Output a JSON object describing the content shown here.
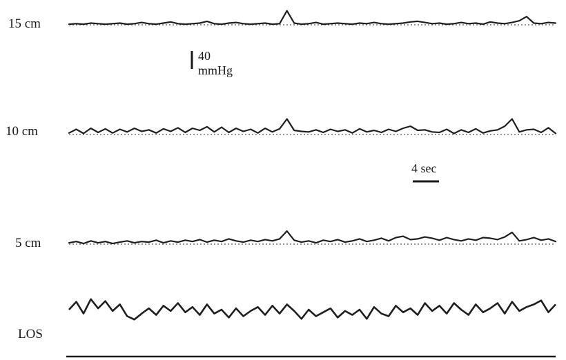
{
  "chart_data": {
    "type": "line",
    "series": [
      {
        "name": "15 cm",
        "values": [
          1,
          2,
          1,
          3,
          2,
          1,
          2,
          3,
          1,
          2,
          4,
          2,
          1,
          3,
          5,
          2,
          1,
          2,
          3,
          6,
          2,
          1,
          3,
          4,
          2,
          1,
          2,
          3,
          1,
          2,
          24,
          3,
          1,
          2,
          4,
          1,
          2,
          3,
          2,
          1,
          3,
          2,
          4,
          2,
          1,
          2,
          3,
          5,
          6,
          4,
          2,
          3,
          1,
          2,
          4,
          2,
          3,
          1,
          5,
          3,
          2,
          4,
          7,
          14,
          3,
          2,
          4,
          3
        ]
      },
      {
        "name": "10 cm",
        "values": [
          3,
          10,
          2,
          12,
          4,
          11,
          3,
          10,
          5,
          12,
          6,
          9,
          3,
          11,
          6,
          13,
          4,
          12,
          8,
          15,
          5,
          14,
          4,
          12,
          6,
          10,
          3,
          12,
          5,
          11,
          30,
          8,
          6,
          5,
          9,
          4,
          10,
          6,
          9,
          3,
          11,
          5,
          8,
          4,
          10,
          6,
          12,
          16,
          8,
          9,
          5,
          4,
          10,
          2,
          9,
          4,
          11,
          3,
          7,
          9,
          16,
          30,
          5,
          9,
          10,
          4,
          13,
          2
        ]
      },
      {
        "name": "5 cm",
        "values": [
          2,
          4,
          1,
          5,
          2,
          4,
          1,
          3,
          5,
          2,
          4,
          3,
          6,
          2,
          5,
          3,
          6,
          4,
          7,
          3,
          6,
          4,
          8,
          5,
          3,
          6,
          4,
          7,
          5,
          8,
          20,
          6,
          3,
          5,
          2,
          6,
          4,
          7,
          3,
          5,
          8,
          4,
          6,
          9,
          5,
          10,
          12,
          7,
          8,
          11,
          9,
          6,
          10,
          7,
          5,
          8,
          6,
          10,
          9,
          7,
          11,
          18,
          5,
          7,
          10,
          6,
          8,
          4
        ]
      },
      {
        "name": "LOS",
        "values": [
          20,
          32,
          14,
          36,
          22,
          33,
          18,
          28,
          10,
          5,
          14,
          22,
          12,
          26,
          18,
          30,
          16,
          24,
          12,
          28,
          14,
          20,
          8,
          22,
          10,
          18,
          24,
          12,
          26,
          14,
          28,
          18,
          6,
          20,
          10,
          16,
          22,
          8,
          18,
          12,
          20,
          6,
          24,
          14,
          10,
          26,
          16,
          22,
          12,
          30,
          18,
          26,
          14,
          30,
          20,
          12,
          28,
          16,
          22,
          30,
          14,
          32,
          18,
          24,
          28,
          34,
          16,
          28
        ]
      }
    ],
    "scale_bar_value": "40",
    "scale_bar_unit": "mmHg",
    "time_bar_label": "4 sec"
  }
}
